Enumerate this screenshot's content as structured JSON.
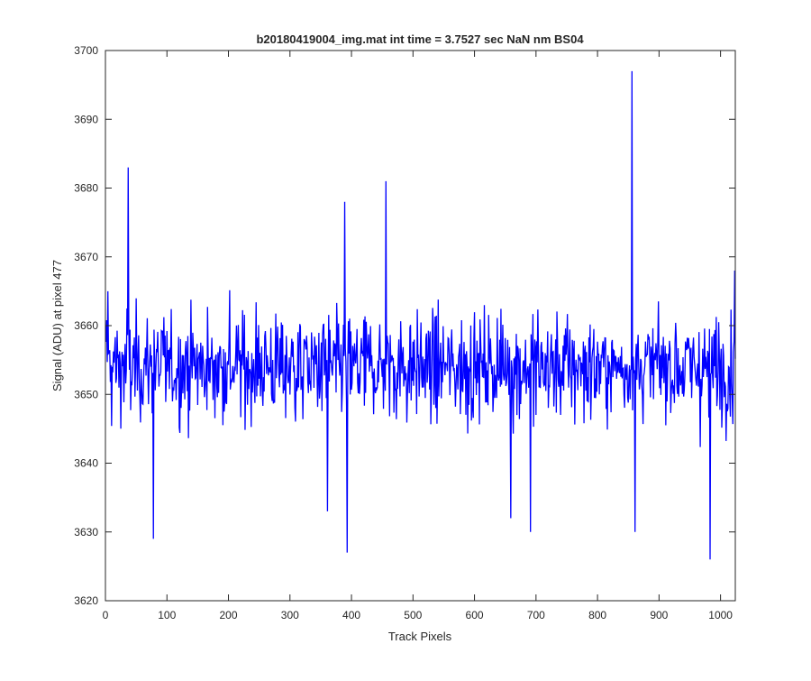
{
  "chart_data": {
    "type": "line",
    "title": "b20180419004_img.mat int time = 3.7527 sec  NaN nm BS04",
    "xlabel": "Track Pixels",
    "ylabel": "Signal (ADU) at pixel 477",
    "xlim": [
      0,
      1024
    ],
    "ylim": [
      3620,
      3700
    ],
    "xticks": [
      0,
      100,
      200,
      300,
      400,
      500,
      600,
      700,
      800,
      900,
      1000
    ],
    "yticks": [
      3620,
      3630,
      3640,
      3650,
      3660,
      3670,
      3680,
      3690,
      3700
    ],
    "grid": false,
    "legend": "none",
    "series_color": "#0000ff",
    "noise": {
      "n_points": 1024,
      "mean": 3654,
      "spread": 6
    },
    "notable_points": [
      {
        "x": 3,
        "y": 3665
      },
      {
        "x": 36,
        "y": 3683
      },
      {
        "x": 77,
        "y": 3629
      },
      {
        "x": 360,
        "y": 3633
      },
      {
        "x": 388,
        "y": 3678
      },
      {
        "x": 392,
        "y": 3627
      },
      {
        "x": 455,
        "y": 3681
      },
      {
        "x": 658,
        "y": 3632
      },
      {
        "x": 690,
        "y": 3630
      },
      {
        "x": 855,
        "y": 3697
      },
      {
        "x": 860,
        "y": 3630
      },
      {
        "x": 982,
        "y": 3626
      },
      {
        "x": 1022,
        "y": 3668
      }
    ]
  }
}
